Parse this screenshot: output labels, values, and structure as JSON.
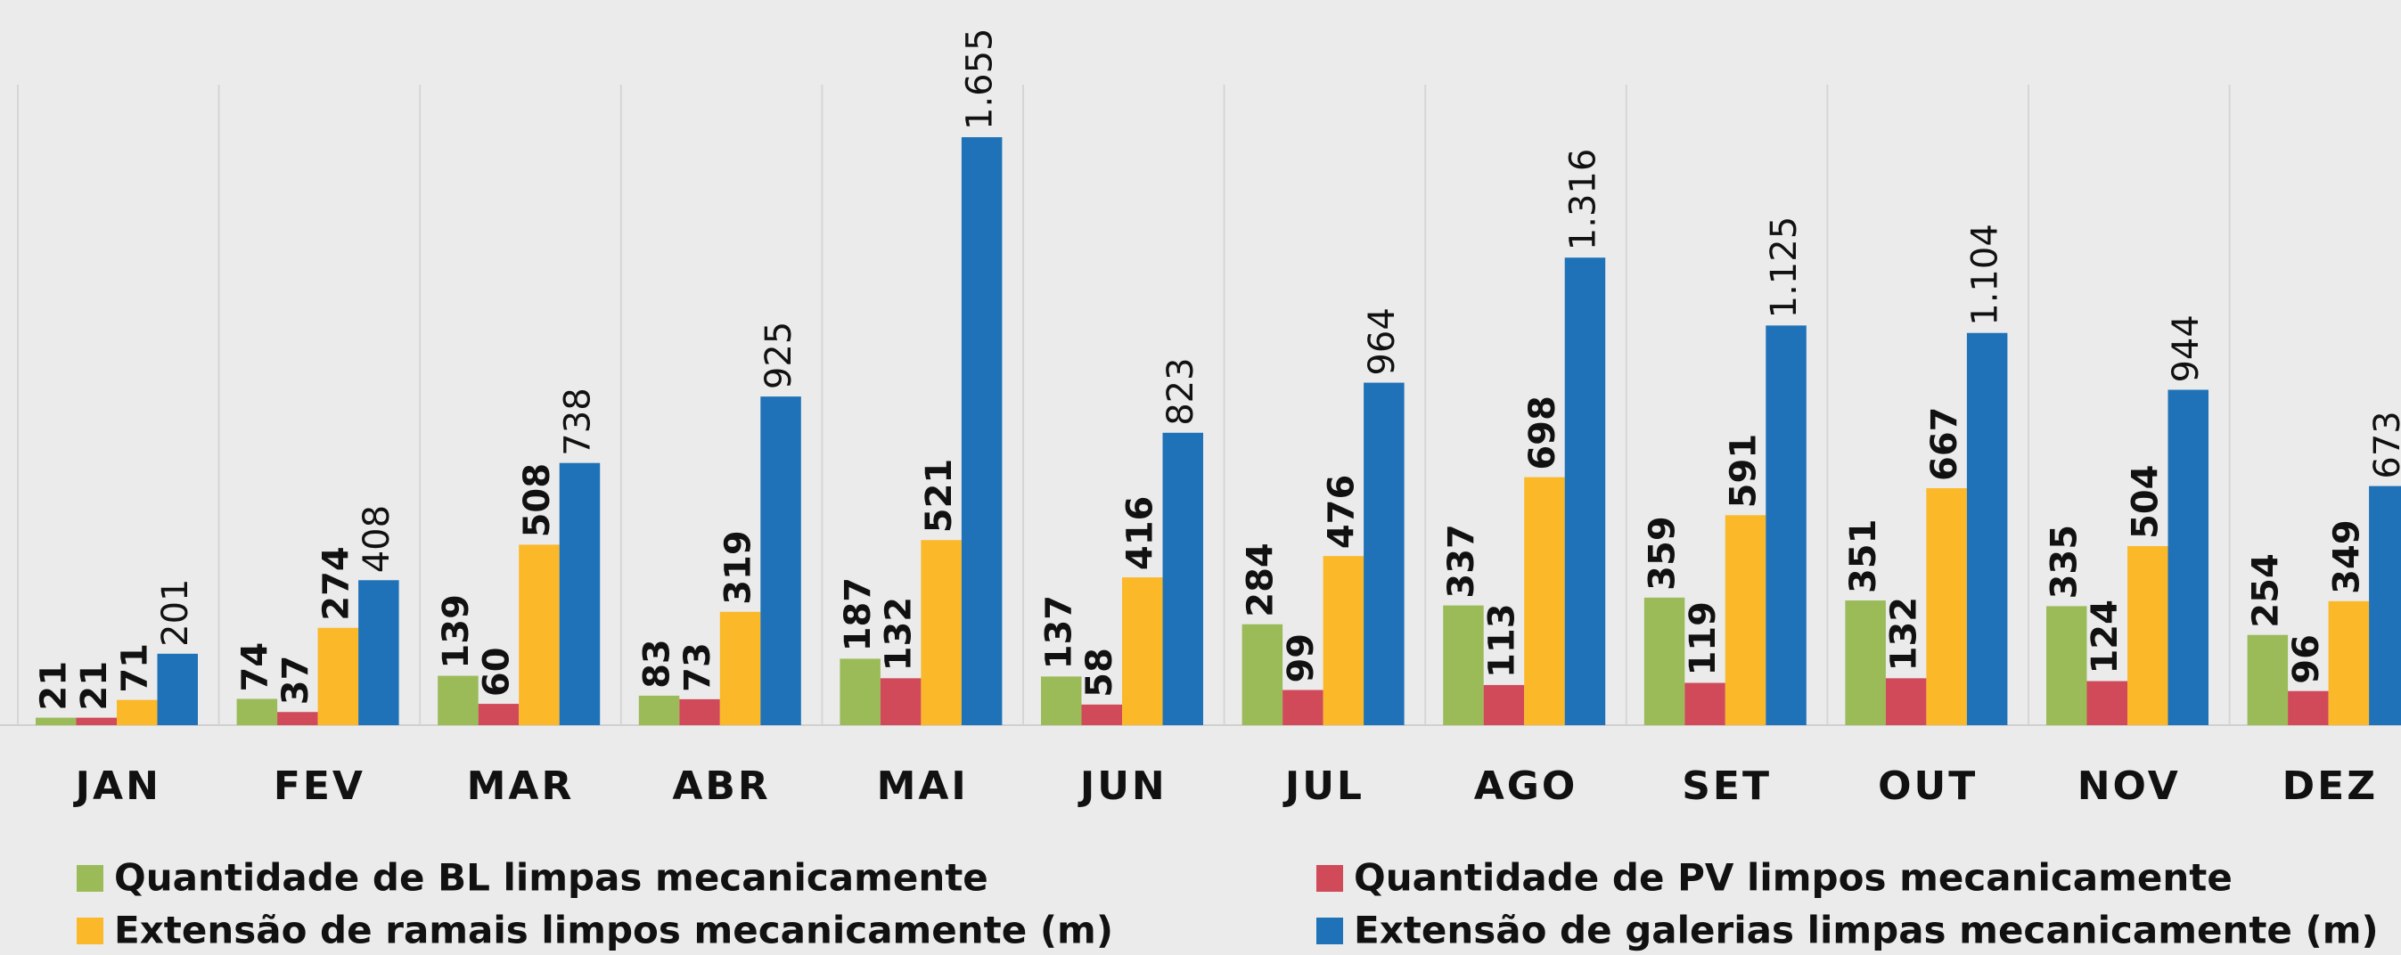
{
  "chart_data": {
    "type": "bar",
    "categories": [
      "JAN",
      "FEV",
      "MAR",
      "ABR",
      "MAI",
      "JUN",
      "JUL",
      "AGO",
      "SET",
      "OUT",
      "NOV",
      "DEZ"
    ],
    "series": [
      {
        "name": "Quantidade de BL limpas mecanicamente",
        "color": "#9bbb59",
        "values": [
          21,
          74,
          139,
          83,
          187,
          137,
          284,
          337,
          359,
          351,
          335,
          254
        ]
      },
      {
        "name": "Quantidade de PV limpos mecanicamente",
        "color": "#d04a5a",
        "values": [
          21,
          37,
          60,
          73,
          132,
          58,
          99,
          113,
          119,
          132,
          124,
          96
        ]
      },
      {
        "name": "Extensão de ramais limpos mecanicamente (m)",
        "color": "#fbb829",
        "values": [
          71,
          274,
          508,
          319,
          521,
          416,
          476,
          698,
          591,
          667,
          504,
          349
        ]
      },
      {
        "name": "Extensão de galerias limpas mecanicamente (m)",
        "color": "#1f72b8",
        "values": [
          201,
          408,
          738,
          925,
          1655,
          823,
          964,
          1316,
          1125,
          1104,
          944,
          673
        ],
        "value_labels": [
          "201",
          "408",
          "738",
          "925",
          "1.655",
          "823",
          "964",
          "1.316",
          "1.125",
          "1.104",
          "944",
          "673"
        ]
      }
    ],
    "grid": true
  }
}
